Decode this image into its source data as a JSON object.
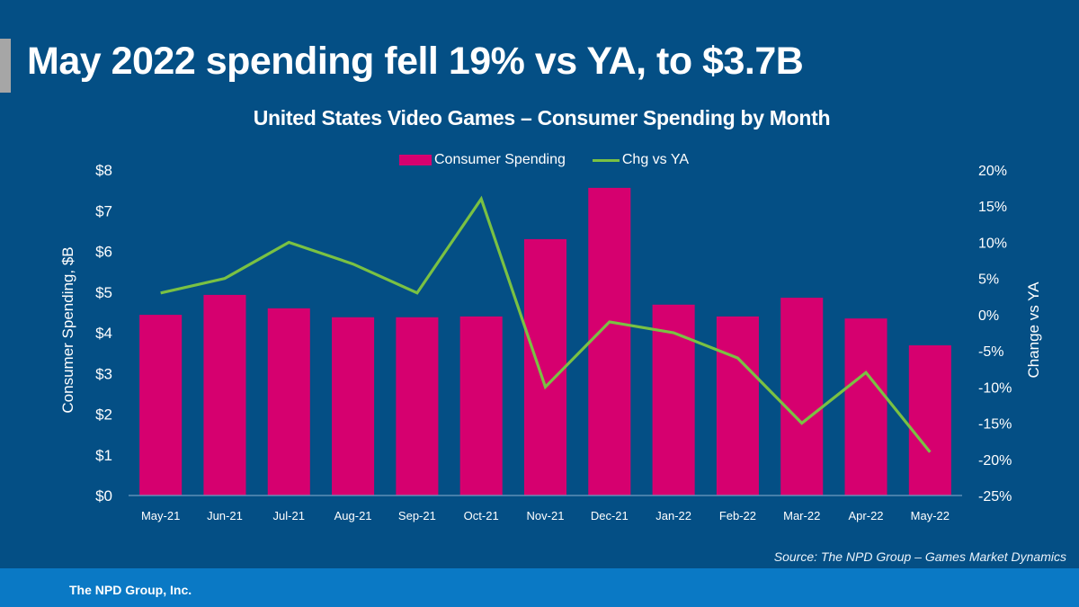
{
  "headline": "May 2022 spending fell 19% vs YA, to $3.7B",
  "footer": {
    "source": "Source: The NPD Group – Games Market Dynamics",
    "company": "The NPD Group, Inc."
  },
  "colors": {
    "background": "#044f85",
    "bar": "#d6006f",
    "line": "#7ac143",
    "footer_band": "#0a79c5",
    "accent_bar": "#a6a6a6"
  },
  "chart_data": {
    "type": "bar",
    "title": "United States Video Games – Consumer Spending by Month",
    "categories": [
      "May-21",
      "Jun-21",
      "Jul-21",
      "Aug-21",
      "Sep-21",
      "Oct-21",
      "Nov-21",
      "Dec-21",
      "Jan-22",
      "Feb-22",
      "Mar-22",
      "Apr-22",
      "May-22"
    ],
    "series": [
      {
        "name": "Consumer Spending",
        "type": "bar",
        "axis": "left",
        "unit": "$B",
        "values": [
          4.44,
          4.93,
          4.6,
          4.38,
          4.38,
          4.4,
          6.3,
          7.56,
          4.69,
          4.4,
          4.86,
          4.35,
          3.69
        ]
      },
      {
        "name": "Chg vs YA",
        "type": "line",
        "axis": "right",
        "unit": "%",
        "values": [
          3,
          5,
          10,
          7,
          3,
          16,
          -10,
          -1,
          -2.5,
          -6,
          -15,
          -8,
          -19
        ]
      }
    ],
    "ylabel": "Consumer Spending, $B",
    "ylim": [
      0,
      8
    ],
    "yticks": [
      "$0",
      "$1",
      "$2",
      "$3",
      "$4",
      "$5",
      "$6",
      "$7",
      "$8"
    ],
    "y2label": "Change vs YA",
    "y2lim": [
      -25,
      20
    ],
    "y2ticks": [
      "-25%",
      "-20%",
      "-15%",
      "-10%",
      "-5%",
      "0%",
      "5%",
      "10%",
      "15%",
      "20%"
    ],
    "xlabel": "",
    "grid": false,
    "legend_position": "top-center"
  }
}
